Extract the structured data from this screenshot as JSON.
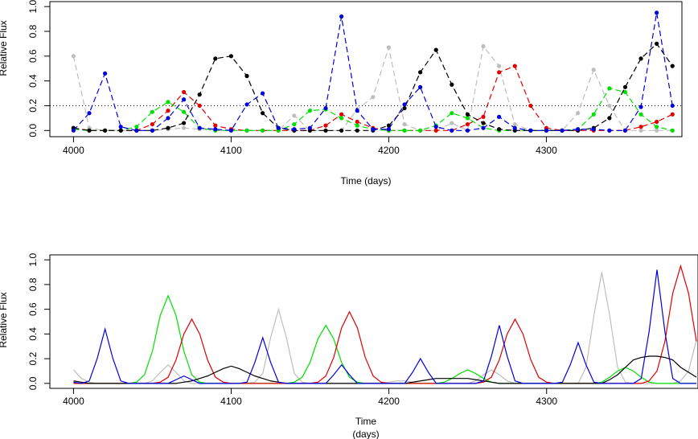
{
  "chart_data": [
    {
      "type": "line",
      "markers": true,
      "dashed": true,
      "xlabel": [
        "Time (days)"
      ],
      "ylabel": "Relative Flux",
      "xlim": [
        3985,
        4386
      ],
      "ylim": [
        -0.05,
        1.04
      ],
      "xticks": [
        4000,
        4100,
        4200,
        4300
      ],
      "yticks": [
        0.0,
        0.2,
        0.4,
        0.6,
        0.8,
        1.0
      ],
      "ytick_labels": [
        "0.0",
        "0.2",
        "0.4",
        "0.6",
        "0.8",
        "1.0"
      ],
      "hline": 0.2,
      "x": [
        4000,
        4010,
        4020,
        4030,
        4040,
        4050,
        4060,
        4070,
        4080,
        4090,
        4100,
        4110,
        4120,
        4130,
        4140,
        4150,
        4160,
        4170,
        4180,
        4190,
        4200,
        4210,
        4220,
        4230,
        4240,
        4250,
        4260,
        4270,
        4280,
        4290,
        4300,
        4310,
        4320,
        4330,
        4340,
        4350,
        4360,
        4370,
        4380
      ],
      "series": [
        {
          "color": "#bebebe",
          "values": [
            0.6,
            0.02,
            0,
            0,
            0,
            0,
            0.01,
            0.02,
            0.01,
            0,
            0,
            0,
            0,
            0,
            0.12,
            0,
            0,
            0,
            0.17,
            0.27,
            0.67,
            0.05,
            0,
            0,
            0.06,
            0,
            0.68,
            0.52,
            0.05,
            0,
            0,
            0,
            0.14,
            0.49,
            0.2,
            0,
            0,
            0,
            0
          ]
        },
        {
          "color": "#e00000",
          "values": [
            0.02,
            0,
            0,
            0,
            0,
            0.05,
            0.16,
            0.31,
            0.2,
            0.04,
            0.01,
            0,
            0,
            0,
            0,
            0,
            0.04,
            0.13,
            0.07,
            0.02,
            0,
            0,
            0,
            0,
            0,
            0.05,
            0.11,
            0.47,
            0.52,
            0.2,
            0.02,
            0,
            0,
            0,
            0,
            0,
            0.03,
            0.07,
            0.13
          ]
        },
        {
          "color": "#00e000",
          "values": [
            0.01,
            0,
            0,
            0,
            0.03,
            0.15,
            0.23,
            0.15,
            0.02,
            0,
            0,
            0,
            0,
            0,
            0.05,
            0.16,
            0.17,
            0.1,
            0.04,
            0.01,
            0,
            0,
            0,
            0.04,
            0.14,
            0.1,
            0.02,
            0,
            0,
            0,
            0,
            0,
            0.01,
            0.13,
            0.34,
            0.31,
            0.13,
            0.03,
            0
          ]
        },
        {
          "color": "#000000",
          "values": [
            0.02,
            0,
            0,
            0,
            0,
            0,
            0.02,
            0.06,
            0.29,
            0.58,
            0.6,
            0.44,
            0.14,
            0.02,
            0,
            0,
            0,
            0,
            0,
            0,
            0.04,
            0.18,
            0.47,
            0.65,
            0.37,
            0.13,
            0.06,
            0.01,
            0,
            0,
            0,
            0,
            0,
            0.02,
            0.1,
            0.35,
            0.58,
            0.7,
            0.52
          ]
        },
        {
          "color": "#0000dd",
          "values": [
            0,
            0.14,
            0.46,
            0.03,
            0,
            0,
            0.1,
            0.25,
            0.02,
            0.01,
            0,
            0.21,
            0.3,
            0.02,
            0.01,
            0.02,
            0.18,
            0.92,
            0.16,
            0.01,
            0.01,
            0.21,
            0.35,
            0.03,
            0,
            0,
            0.02,
            0.11,
            0.02,
            0,
            0,
            0,
            0.01,
            0.01,
            0,
            0,
            0.19,
            0.95,
            0.2
          ]
        }
      ]
    },
    {
      "type": "line",
      "markers": false,
      "dashed": false,
      "xlabel": [
        "Time",
        "(days)"
      ],
      "ylabel": "Relative Flux",
      "xlim": [
        3985,
        4396
      ],
      "ylim": [
        -0.04,
        1.04
      ],
      "xticks": [
        4000,
        4100,
        4200,
        4300
      ],
      "yticks": [
        0.0,
        0.2,
        0.4,
        0.6,
        0.8,
        1.0
      ],
      "ytick_labels": [
        "0.0",
        "0.2",
        "0.4",
        "0.6",
        "0.8",
        "1.0"
      ],
      "x": [
        4000,
        4005,
        4010,
        4015,
        4020,
        4025,
        4030,
        4035,
        4040,
        4045,
        4050,
        4055,
        4060,
        4065,
        4070,
        4075,
        4080,
        4085,
        4090,
        4095,
        4100,
        4105,
        4110,
        4115,
        4120,
        4125,
        4130,
        4135,
        4140,
        4145,
        4150,
        4155,
        4160,
        4165,
        4170,
        4175,
        4180,
        4185,
        4190,
        4195,
        4200,
        4205,
        4210,
        4215,
        4220,
        4225,
        4230,
        4235,
        4240,
        4245,
        4250,
        4255,
        4260,
        4265,
        4270,
        4275,
        4280,
        4285,
        4290,
        4295,
        4300,
        4305,
        4310,
        4315,
        4320,
        4325,
        4330,
        4335,
        4340,
        4345,
        4350,
        4355,
        4360,
        4365,
        4370,
        4375,
        4380,
        4385,
        4390,
        4395
      ],
      "series": [
        {
          "color": "#bebebe",
          "values": [
            0.11,
            0.04,
            0.01,
            0,
            0,
            0,
            0,
            0,
            0,
            0,
            0.02,
            0.09,
            0.15,
            0.09,
            0.02,
            0,
            0,
            0,
            0,
            0,
            0,
            0,
            0,
            0.01,
            0.08,
            0.37,
            0.6,
            0.37,
            0.08,
            0.01,
            0,
            0,
            0,
            0,
            0,
            0,
            0,
            0,
            0,
            0,
            0.01,
            0.02,
            0.02,
            0.01,
            0,
            0,
            0,
            0,
            0,
            0,
            0,
            0.02,
            0.07,
            0.11,
            0.07,
            0.02,
            0,
            0,
            0,
            0,
            0,
            0,
            0,
            0,
            0,
            0.13,
            0.55,
            0.9,
            0.55,
            0.13,
            0.01,
            0,
            0,
            0,
            0,
            0,
            0,
            0.02,
            0.1,
            0.35
          ]
        },
        {
          "color": "#00e000",
          "values": [
            0,
            0,
            0,
            0,
            0,
            0,
            0,
            0,
            0.01,
            0.07,
            0.26,
            0.55,
            0.71,
            0.55,
            0.26,
            0.07,
            0.01,
            0,
            0,
            0,
            0,
            0,
            0,
            0,
            0,
            0,
            0,
            0,
            0.01,
            0.05,
            0.17,
            0.36,
            0.47,
            0.36,
            0.17,
            0.05,
            0.01,
            0,
            0,
            0,
            0,
            0,
            0,
            0,
            0,
            0,
            0,
            0.01,
            0.04,
            0.08,
            0.11,
            0.08,
            0.04,
            0.01,
            0,
            0,
            0,
            0,
            0,
            0,
            0,
            0,
            0,
            0,
            0,
            0,
            0,
            0.01,
            0.05,
            0.1,
            0.13,
            0.1,
            0.05,
            0.01,
            0,
            0,
            0,
            0,
            0,
            0
          ]
        },
        {
          "color": "#e00000",
          "values": [
            0,
            0,
            0,
            0,
            0,
            0,
            0,
            0,
            0,
            0,
            0,
            0.01,
            0.05,
            0.19,
            0.4,
            0.52,
            0.4,
            0.19,
            0.05,
            0.01,
            0,
            0,
            0,
            0,
            0,
            0,
            0,
            0,
            0,
            0,
            0,
            0.01,
            0.06,
            0.21,
            0.45,
            0.58,
            0.45,
            0.21,
            0.06,
            0.01,
            0,
            0,
            0,
            0,
            0,
            0,
            0,
            0,
            0,
            0,
            0,
            0,
            0.01,
            0.05,
            0.19,
            0.4,
            0.52,
            0.4,
            0.19,
            0.05,
            0.01,
            0,
            0,
            0,
            0,
            0,
            0,
            0,
            0,
            0,
            0,
            0,
            0,
            0.02,
            0.1,
            0.34,
            0.73,
            0.95,
            0.73,
            0.34
          ]
        },
        {
          "color": "#000000",
          "values": [
            0.02,
            0.01,
            0,
            0,
            0,
            0,
            0,
            0,
            0,
            0,
            0,
            0,
            0,
            0,
            0.01,
            0.02,
            0.04,
            0.06,
            0.09,
            0.12,
            0.14,
            0.12,
            0.09,
            0.06,
            0.04,
            0.02,
            0.01,
            0,
            0,
            0,
            0,
            0,
            0,
            0,
            0,
            0,
            0,
            0,
            0,
            0,
            0,
            0,
            0,
            0.01,
            0.02,
            0.03,
            0.04,
            0.04,
            0.04,
            0.04,
            0.04,
            0.03,
            0.02,
            0.01,
            0,
            0,
            0,
            0,
            0,
            0,
            0,
            0,
            0,
            0,
            0,
            0,
            0,
            0,
            0.03,
            0.07,
            0.13,
            0.19,
            0.21,
            0.22,
            0.22,
            0.21,
            0.19,
            0.13,
            0.09,
            0.05
          ]
        },
        {
          "color": "#0000dd",
          "values": [
            0.01,
            0,
            0.02,
            0.2,
            0.44,
            0.2,
            0.02,
            0,
            0,
            0,
            0,
            0,
            0,
            0.03,
            0.06,
            0.03,
            0,
            0,
            0,
            0,
            0,
            0,
            0.01,
            0.17,
            0.37,
            0.17,
            0.01,
            0,
            0,
            0,
            0,
            0,
            0,
            0.07,
            0.15,
            0.07,
            0,
            0,
            0,
            0,
            0,
            0,
            0,
            0.09,
            0.2,
            0.09,
            0,
            0,
            0,
            0,
            0,
            0,
            0.02,
            0.22,
            0.47,
            0.22,
            0.02,
            0,
            0,
            0,
            0,
            0,
            0.01,
            0.15,
            0.33,
            0.15,
            0.01,
            0,
            0,
            0,
            0,
            0,
            0.04,
            0.42,
            0.92,
            0.42,
            0.04,
            0,
            0,
            0
          ]
        }
      ]
    }
  ]
}
